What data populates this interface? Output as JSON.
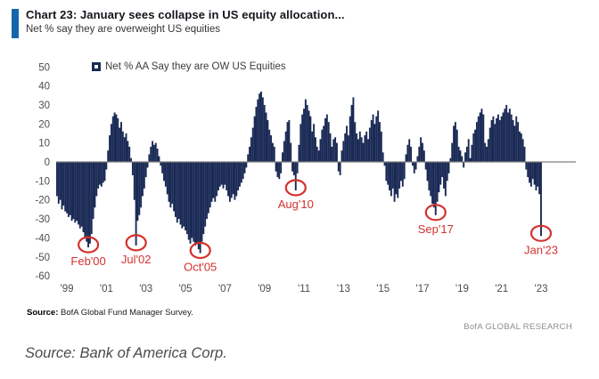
{
  "header": {
    "title": "Chart 23: January sees collapse in US equity allocation...",
    "subtitle": "Net % say they are overweight US equities",
    "accent_color": "#1565ad"
  },
  "legend": {
    "label": "Net % AA Say they are OW US Equities"
  },
  "footer": {
    "source_label": "Source:",
    "source_text": " BofA Global Fund Manager Survey.",
    "brand": "BofA GLOBAL RESEARCH"
  },
  "caption": "Source: Bank of America Corp.",
  "colors": {
    "bar": "#1a2a55",
    "annotation": "#d23230",
    "zero_line": "#7d7d7d",
    "tick_text": "#4d4d4d"
  },
  "chart_data": {
    "type": "bar",
    "title": "Net % AA Say they are OW US Equities",
    "ylabel": "Net %",
    "frequency": "monthly",
    "start_month": "1998-07",
    "end_month": "2023-01",
    "ylim": [
      -60,
      50
    ],
    "y_ticks": [
      50,
      40,
      30,
      20,
      10,
      0,
      -10,
      -20,
      -30,
      -40,
      -50,
      -60
    ],
    "x_tick_labels": [
      "'99",
      "'01",
      "'03",
      "'05",
      "'07",
      "'09",
      "'11",
      "'13",
      "'15",
      "'17",
      "'19",
      "'21",
      "'23"
    ],
    "x_tick_indices": [
      6,
      30,
      54,
      78,
      102,
      126,
      150,
      174,
      198,
      222,
      246,
      270,
      294
    ],
    "grid": false,
    "legend_position": "top-left-inside",
    "values": [
      -18,
      -22,
      -20,
      -25,
      -23,
      -26,
      -27,
      -29,
      -28,
      -31,
      -30,
      -32,
      -31,
      -33,
      -35,
      -34,
      -37,
      -40,
      -42,
      -45,
      -43,
      -38,
      -30,
      -24,
      -18,
      -14,
      -12,
      -13,
      -11,
      -10,
      -4,
      6,
      14,
      20,
      24,
      26,
      25,
      23,
      18,
      21,
      16,
      13,
      15,
      11,
      8,
      2,
      -7,
      -20,
      -44,
      -31,
      -28,
      -24,
      -18,
      -14,
      -8,
      -3,
      4,
      8,
      11,
      9,
      10,
      7,
      3,
      -2,
      -6,
      -10,
      -13,
      -17,
      -21,
      -24,
      -22,
      -26,
      -29,
      -32,
      -30,
      -33,
      -35,
      -34,
      -36,
      -38,
      -41,
      -43,
      -40,
      -42,
      -44,
      -43,
      -46,
      -48,
      -42,
      -38,
      -34,
      -30,
      -27,
      -24,
      -21,
      -19,
      -21,
      -18,
      -15,
      -13,
      -12,
      -14,
      -12,
      -15,
      -18,
      -21,
      -19,
      -17,
      -20,
      -18,
      -15,
      -13,
      -11,
      -9,
      -6,
      -3,
      4,
      8,
      13,
      18,
      24,
      29,
      33,
      36,
      37,
      34,
      30,
      26,
      22,
      17,
      14,
      10,
      8,
      -5,
      -8,
      -9,
      -6,
      5,
      11,
      16,
      21,
      22,
      10,
      -5,
      -7,
      -15,
      -6,
      9,
      20,
      25,
      28,
      33,
      30,
      27,
      24,
      16,
      20,
      13,
      8,
      6,
      12,
      17,
      19,
      23,
      25,
      21,
      15,
      8,
      12,
      13,
      10,
      -5,
      -7,
      6,
      11,
      15,
      19,
      14,
      24,
      30,
      34,
      21,
      15,
      12,
      16,
      13,
      10,
      14,
      16,
      12,
      18,
      22,
      25,
      20,
      24,
      27,
      21,
      16,
      5,
      -2,
      -10,
      -12,
      -15,
      -18,
      -14,
      -21,
      -17,
      -19,
      -14,
      -10,
      -13,
      -9,
      4,
      9,
      12,
      8,
      -2,
      -6,
      -4,
      3,
      8,
      13,
      10,
      6,
      -4,
      -10,
      -15,
      -18,
      -22,
      -24,
      -28,
      -21,
      -16,
      -12,
      -8,
      -14,
      -18,
      -10,
      -6,
      2,
      10,
      19,
      21,
      17,
      8,
      6,
      3,
      -3,
      5,
      8,
      12,
      2,
      9,
      15,
      17,
      21,
      24,
      26,
      28,
      25,
      10,
      8,
      12,
      18,
      22,
      24,
      20,
      23,
      25,
      22,
      24,
      26,
      28,
      30,
      26,
      28,
      25,
      22,
      19,
      24,
      21,
      16,
      15,
      12,
      8,
      -4,
      -8,
      -11,
      -13,
      -9,
      -12,
      -15,
      -13,
      -17,
      -39
    ],
    "annotations": [
      {
        "label": "Feb'00",
        "index": 19,
        "value": -45
      },
      {
        "label": "Jul'02",
        "index": 48,
        "value": -44
      },
      {
        "label": "Oct'05",
        "index": 87,
        "value": -48
      },
      {
        "label": "Aug'10",
        "index": 145,
        "value": -15
      },
      {
        "label": "Sep'17",
        "index": 230,
        "value": -28
      },
      {
        "label": "Jan'23",
        "index": 294,
        "value": -39
      }
    ]
  }
}
